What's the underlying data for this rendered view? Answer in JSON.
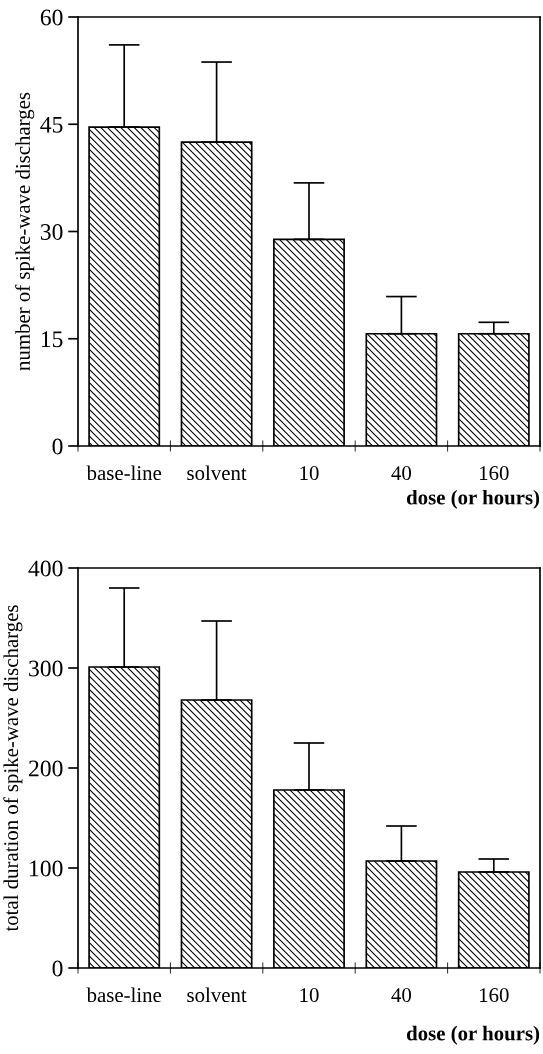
{
  "chart_data": [
    {
      "type": "bar",
      "categories": [
        "base-line",
        "solvent",
        "10",
        "40",
        "160"
      ],
      "xlabel": "dose (or hours)",
      "ylabel": "number of spike-wave discharges",
      "values": [
        44.6,
        42.5,
        28.9,
        15.7,
        15.7
      ],
      "errors": [
        [
          44.6,
          56.1
        ],
        [
          42.5,
          53.7
        ],
        [
          28.9,
          36.8
        ],
        [
          15.7,
          20.9
        ],
        [
          15.7,
          17.3
        ]
      ],
      "color": "#000000",
      "ylim": [
        0,
        60
      ],
      "yticks": [
        0,
        15,
        30,
        45,
        60
      ],
      "grid": false,
      "legend": false
    },
    {
      "type": "bar",
      "categories": [
        "base-line",
        "solvent",
        "10",
        "40",
        "160"
      ],
      "xlabel": "dose (or hours)",
      "ylabel": "total duration of spike-wave discharges",
      "values": [
        301,
        268,
        178,
        107,
        96
      ],
      "errors": [
        [
          301,
          380
        ],
        [
          268,
          347
        ],
        [
          178,
          225
        ],
        [
          107,
          142
        ],
        [
          96,
          109
        ]
      ],
      "color": "#000000",
      "ylim": [
        0,
        400
      ],
      "yticks": [
        0,
        100,
        200,
        300,
        400
      ],
      "grid": false,
      "legend": false
    }
  ]
}
